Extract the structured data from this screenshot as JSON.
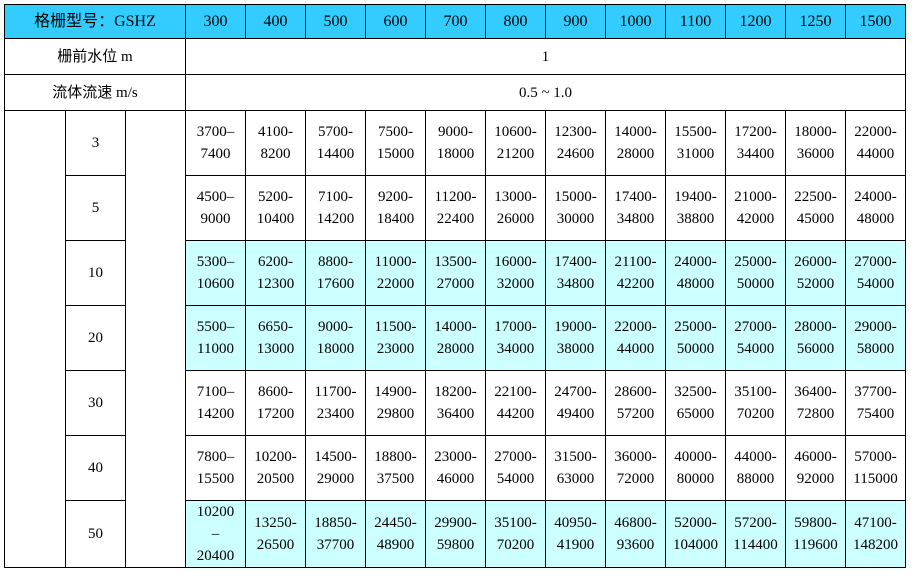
{
  "table": {
    "header": {
      "label": "格栅型号：GSHZ",
      "models": [
        "300",
        "400",
        "500",
        "600",
        "700",
        "800",
        "900",
        "1000",
        "1100",
        "1200",
        "1250",
        "1500"
      ]
    },
    "params": [
      {
        "label": "栅前水位  m",
        "value": "1"
      },
      {
        "label": "流体流速  m/s",
        "value": "0.5 ~ 1.0"
      }
    ],
    "rows": [
      {
        "level": "3",
        "highlight": false,
        "cells": [
          [
            "3700–",
            "7400"
          ],
          [
            "4100-",
            "8200"
          ],
          [
            "5700-",
            "14400"
          ],
          [
            "7500-",
            "15000"
          ],
          [
            "9000-",
            "18000"
          ],
          [
            "10600-",
            "21200"
          ],
          [
            "12300-",
            "24600"
          ],
          [
            "14000-",
            "28000"
          ],
          [
            "15500-",
            "31000"
          ],
          [
            "17200-",
            "34400"
          ],
          [
            "18000-",
            "36000"
          ],
          [
            "22000-",
            "44000"
          ]
        ]
      },
      {
        "level": "5",
        "highlight": false,
        "cells": [
          [
            "4500–",
            "9000"
          ],
          [
            "5200-",
            "10400"
          ],
          [
            "7100-",
            "14200"
          ],
          [
            "9200-",
            "18400"
          ],
          [
            "11200-",
            "22400"
          ],
          [
            "13000-",
            "26000"
          ],
          [
            "15000-",
            "30000"
          ],
          [
            "17400-",
            "34800"
          ],
          [
            "19400-",
            "38800"
          ],
          [
            "21000-",
            "42000"
          ],
          [
            "22500-",
            "45000"
          ],
          [
            "24000-",
            "48000"
          ]
        ]
      },
      {
        "level": "10",
        "highlight": true,
        "cells": [
          [
            "5300–",
            "10600"
          ],
          [
            "6200-",
            "12300"
          ],
          [
            "8800-",
            "17600"
          ],
          [
            "11000-",
            "22000"
          ],
          [
            "13500-",
            "27000"
          ],
          [
            "16000-",
            "32000"
          ],
          [
            "17400-",
            "34800"
          ],
          [
            "21100-",
            "42200"
          ],
          [
            "24000-",
            "48000"
          ],
          [
            "25000-",
            "50000"
          ],
          [
            "26000-",
            "52000"
          ],
          [
            "27000-",
            "54000"
          ]
        ]
      },
      {
        "level": "20",
        "highlight": true,
        "cells": [
          [
            "5500–",
            "11000"
          ],
          [
            "6650-",
            "13000"
          ],
          [
            "9000-",
            "18000"
          ],
          [
            "11500-",
            "23000"
          ],
          [
            "14000-",
            "28000"
          ],
          [
            "17000-",
            "34000"
          ],
          [
            "19000-",
            "38000"
          ],
          [
            "22000-",
            "44000"
          ],
          [
            "25000-",
            "50000"
          ],
          [
            "27000-",
            "54000"
          ],
          [
            "28000-",
            "56000"
          ],
          [
            "29000-",
            "58000"
          ]
        ]
      },
      {
        "level": "30",
        "highlight": false,
        "cells": [
          [
            "7100–",
            "14200"
          ],
          [
            "8600-",
            "17200"
          ],
          [
            "11700-",
            "23400"
          ],
          [
            "14900-",
            "29800"
          ],
          [
            "18200-",
            "36400"
          ],
          [
            "22100-",
            "44200"
          ],
          [
            "24700-",
            "49400"
          ],
          [
            "28600-",
            "57200"
          ],
          [
            "32500-",
            "65000"
          ],
          [
            "35100-",
            "70200"
          ],
          [
            "36400-",
            "72800"
          ],
          [
            "37700-",
            "75400"
          ]
        ]
      },
      {
        "level": "40",
        "highlight": false,
        "cells": [
          [
            "7800–",
            "15500"
          ],
          [
            "10200-",
            "20500"
          ],
          [
            "14500-",
            "29000"
          ],
          [
            "18800-",
            "37500"
          ],
          [
            "23000-",
            "46000"
          ],
          [
            "27000-",
            "54000"
          ],
          [
            "31500-",
            "63000"
          ],
          [
            "36000-",
            "72000"
          ],
          [
            "40000-",
            "80000"
          ],
          [
            "44000-",
            "88000"
          ],
          [
            "46000-",
            "92000"
          ],
          [
            "57000-",
            "115000"
          ]
        ]
      },
      {
        "level": "50",
        "highlight": true,
        "cells": [
          [
            "10200",
            "–",
            "20400"
          ],
          [
            "13250-",
            "26500"
          ],
          [
            "18850-",
            "37700"
          ],
          [
            "24450-",
            "48900"
          ],
          [
            "29900-",
            "59800"
          ],
          [
            "35100-",
            "70200"
          ],
          [
            "40950-",
            "41900"
          ],
          [
            "46800-",
            "93600"
          ],
          [
            "52000-",
            "104000"
          ],
          [
            "57200-",
            "114400"
          ],
          [
            "59800-",
            "119600"
          ],
          [
            "47100-",
            "148200"
          ]
        ]
      }
    ]
  }
}
